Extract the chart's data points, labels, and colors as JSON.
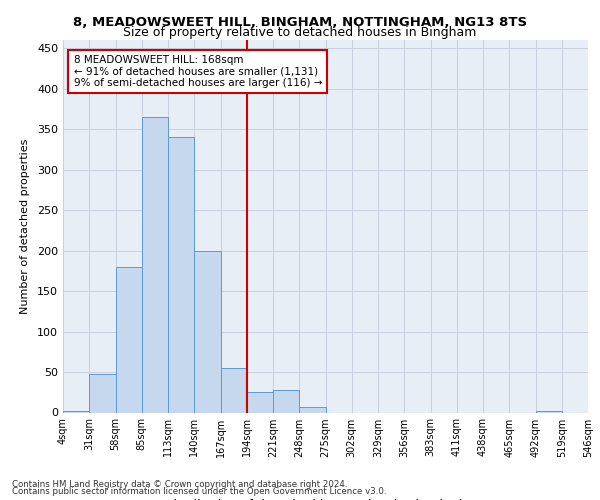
{
  "title": "8, MEADOWSWEET HILL, BINGHAM, NOTTINGHAM, NG13 8TS",
  "subtitle": "Size of property relative to detached houses in Bingham",
  "xlabel": "Distribution of detached houses by size in Bingham",
  "ylabel": "Number of detached properties",
  "footer_line1": "Contains HM Land Registry data © Crown copyright and database right 2024.",
  "footer_line2": "Contains public sector information licensed under the Open Government Licence v3.0.",
  "bin_labels": [
    "4sqm",
    "31sqm",
    "58sqm",
    "85sqm",
    "113sqm",
    "140sqm",
    "167sqm",
    "194sqm",
    "221sqm",
    "248sqm",
    "275sqm",
    "302sqm",
    "329sqm",
    "356sqm",
    "383sqm",
    "411sqm",
    "438sqm",
    "465sqm",
    "492sqm",
    "519sqm",
    "546sqm"
  ],
  "bar_heights": [
    2,
    47,
    180,
    365,
    340,
    200,
    55,
    25,
    28,
    7,
    0,
    0,
    0,
    0,
    0,
    0,
    0,
    0,
    2,
    0
  ],
  "bar_color": "#c5d8ed",
  "bar_edge_color": "#5b9bd5",
  "vline_x_index": 6,
  "vline_color": "#cc0000",
  "annotation_text": "8 MEADOWSWEET HILL: 168sqm\n← 91% of detached houses are smaller (1,131)\n9% of semi-detached houses are larger (116) →",
  "annotation_box_color": "#ffffff",
  "annotation_box_edge": "#cc0000",
  "ylim": [
    0,
    460
  ],
  "yticks": [
    0,
    50,
    100,
    150,
    200,
    250,
    300,
    350,
    400,
    450
  ],
  "grid_color": "#c8d0e0",
  "bg_color": "#e8eef5"
}
